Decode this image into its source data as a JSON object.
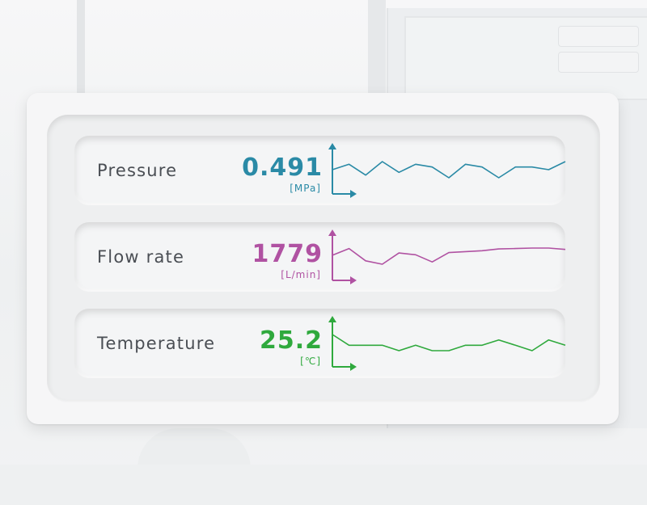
{
  "colors": {
    "pressure": "#2a8aa6",
    "flow": "#b052a2",
    "temperature": "#2fa93d"
  },
  "metrics": [
    {
      "label": "Pressure",
      "value": "0.491",
      "unit": "[MPa]",
      "color_key": "pressure",
      "trend": [
        0.47,
        0.49,
        0.45,
        0.5,
        0.46,
        0.49,
        0.48,
        0.44,
        0.49,
        0.48,
        0.44,
        0.48,
        0.48,
        0.47,
        0.5
      ]
    },
    {
      "label": "Flow rate",
      "value": "1779",
      "unit": "[L/min]",
      "color_key": "flow",
      "trend": [
        1760,
        1790,
        1735,
        1720,
        1770,
        1762,
        1730,
        1772,
        1776,
        1780,
        1788,
        1790,
        1792,
        1792,
        1786
      ]
    },
    {
      "label": "Temperature",
      "value": "25.2",
      "unit": "[℃]",
      "color_key": "temperature",
      "trend": [
        25.3,
        25.1,
        25.1,
        25.1,
        25.0,
        25.1,
        25.0,
        25.0,
        25.1,
        25.1,
        25.2,
        25.1,
        25.0,
        25.2,
        25.1
      ]
    }
  ]
}
